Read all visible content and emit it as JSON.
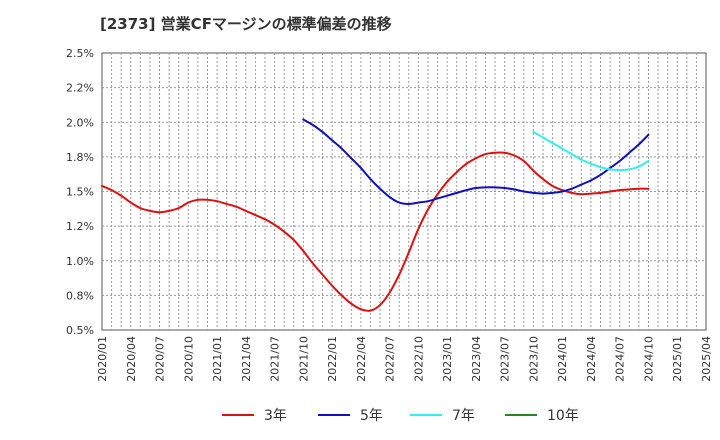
{
  "chart_data": {
    "type": "line",
    "title": "[2373]  営業CFマージンの標準偏差の推移",
    "xlabel": "",
    "ylabel": "",
    "ylim": [
      0.5,
      2.5
    ],
    "y_ticks": [
      "0.5%",
      "0.8%",
      "1.0%",
      "1.2%",
      "1.5%",
      "1.8%",
      "2.0%",
      "2.2%",
      "2.5%"
    ],
    "x_ticks": [
      "2020/01",
      "2020/04",
      "2020/07",
      "2020/10",
      "2021/01",
      "2021/04",
      "2021/07",
      "2021/10",
      "2022/01",
      "2022/04",
      "2022/07",
      "2022/10",
      "2023/01",
      "2023/04",
      "2023/07",
      "2023/10",
      "2024/01",
      "2024/04",
      "2024/07",
      "2024/10",
      "2025/01",
      "2025/04"
    ],
    "grid": true,
    "legend_position": "bottom",
    "series": [
      {
        "name": "3年",
        "color": "#dd1111",
        "x": [
          "2020/01",
          "2020/02",
          "2020/03",
          "2020/04",
          "2020/05",
          "2020/06",
          "2020/07",
          "2020/08",
          "2020/09",
          "2020/10",
          "2020/11",
          "2020/12",
          "2021/01",
          "2021/02",
          "2021/03",
          "2021/04",
          "2021/05",
          "2021/06",
          "2021/07",
          "2021/08",
          "2021/09",
          "2021/10",
          "2021/11",
          "2021/12",
          "2022/01",
          "2022/02",
          "2022/03",
          "2022/04",
          "2022/05",
          "2022/06",
          "2022/07",
          "2022/08",
          "2022/09",
          "2022/10",
          "2022/11",
          "2022/12",
          "2023/01",
          "2023/02",
          "2023/03",
          "2023/04",
          "2023/05",
          "2023/06",
          "2023/07",
          "2023/08",
          "2023/09",
          "2023/10",
          "2023/11",
          "2023/12",
          "2024/01",
          "2024/02",
          "2024/03",
          "2024/04",
          "2024/05",
          "2024/06",
          "2024/07",
          "2024/08",
          "2024/09",
          "2024/10"
        ],
        "values": [
          1.54,
          1.51,
          1.47,
          1.42,
          1.38,
          1.36,
          1.35,
          1.36,
          1.38,
          1.42,
          1.44,
          1.44,
          1.43,
          1.41,
          1.39,
          1.36,
          1.33,
          1.3,
          1.26,
          1.21,
          1.15,
          1.07,
          0.98,
          0.9,
          0.82,
          0.75,
          0.69,
          0.65,
          0.64,
          0.68,
          0.77,
          0.9,
          1.06,
          1.23,
          1.37,
          1.48,
          1.57,
          1.64,
          1.7,
          1.74,
          1.77,
          1.78,
          1.78,
          1.76,
          1.72,
          1.65,
          1.59,
          1.54,
          1.51,
          1.49,
          1.48,
          1.485,
          1.49,
          1.5,
          1.51,
          1.515,
          1.52,
          1.52
        ]
      },
      {
        "name": "5年",
        "color": "#1111bb",
        "x": [
          "2021/10",
          "2021/11",
          "2021/12",
          "2022/01",
          "2022/02",
          "2022/03",
          "2022/04",
          "2022/05",
          "2022/06",
          "2022/07",
          "2022/08",
          "2022/09",
          "2022/10",
          "2022/11",
          "2022/12",
          "2023/01",
          "2023/02",
          "2023/03",
          "2023/04",
          "2023/05",
          "2023/06",
          "2023/07",
          "2023/08",
          "2023/09",
          "2023/10",
          "2023/11",
          "2023/12",
          "2024/01",
          "2024/02",
          "2024/03",
          "2024/04",
          "2024/05",
          "2024/06",
          "2024/07",
          "2024/08",
          "2024/09",
          "2024/10"
        ],
        "values": [
          2.02,
          1.98,
          1.93,
          1.87,
          1.81,
          1.74,
          1.67,
          1.59,
          1.52,
          1.46,
          1.42,
          1.41,
          1.42,
          1.43,
          1.45,
          1.47,
          1.49,
          1.51,
          1.525,
          1.53,
          1.53,
          1.525,
          1.515,
          1.5,
          1.49,
          1.485,
          1.49,
          1.5,
          1.52,
          1.55,
          1.58,
          1.62,
          1.67,
          1.72,
          1.78,
          1.84,
          1.91
        ]
      },
      {
        "name": "7年",
        "color": "#33eeee",
        "x": [
          "2023/10",
          "2023/11",
          "2023/12",
          "2024/01",
          "2024/02",
          "2024/03",
          "2024/04",
          "2024/05",
          "2024/06",
          "2024/07",
          "2024/08",
          "2024/09",
          "2024/10"
        ],
        "values": [
          1.93,
          1.89,
          1.85,
          1.81,
          1.77,
          1.73,
          1.7,
          1.675,
          1.66,
          1.655,
          1.66,
          1.68,
          1.72
        ]
      },
      {
        "name": "10年",
        "color": "#228822",
        "x": [],
        "values": []
      }
    ]
  }
}
